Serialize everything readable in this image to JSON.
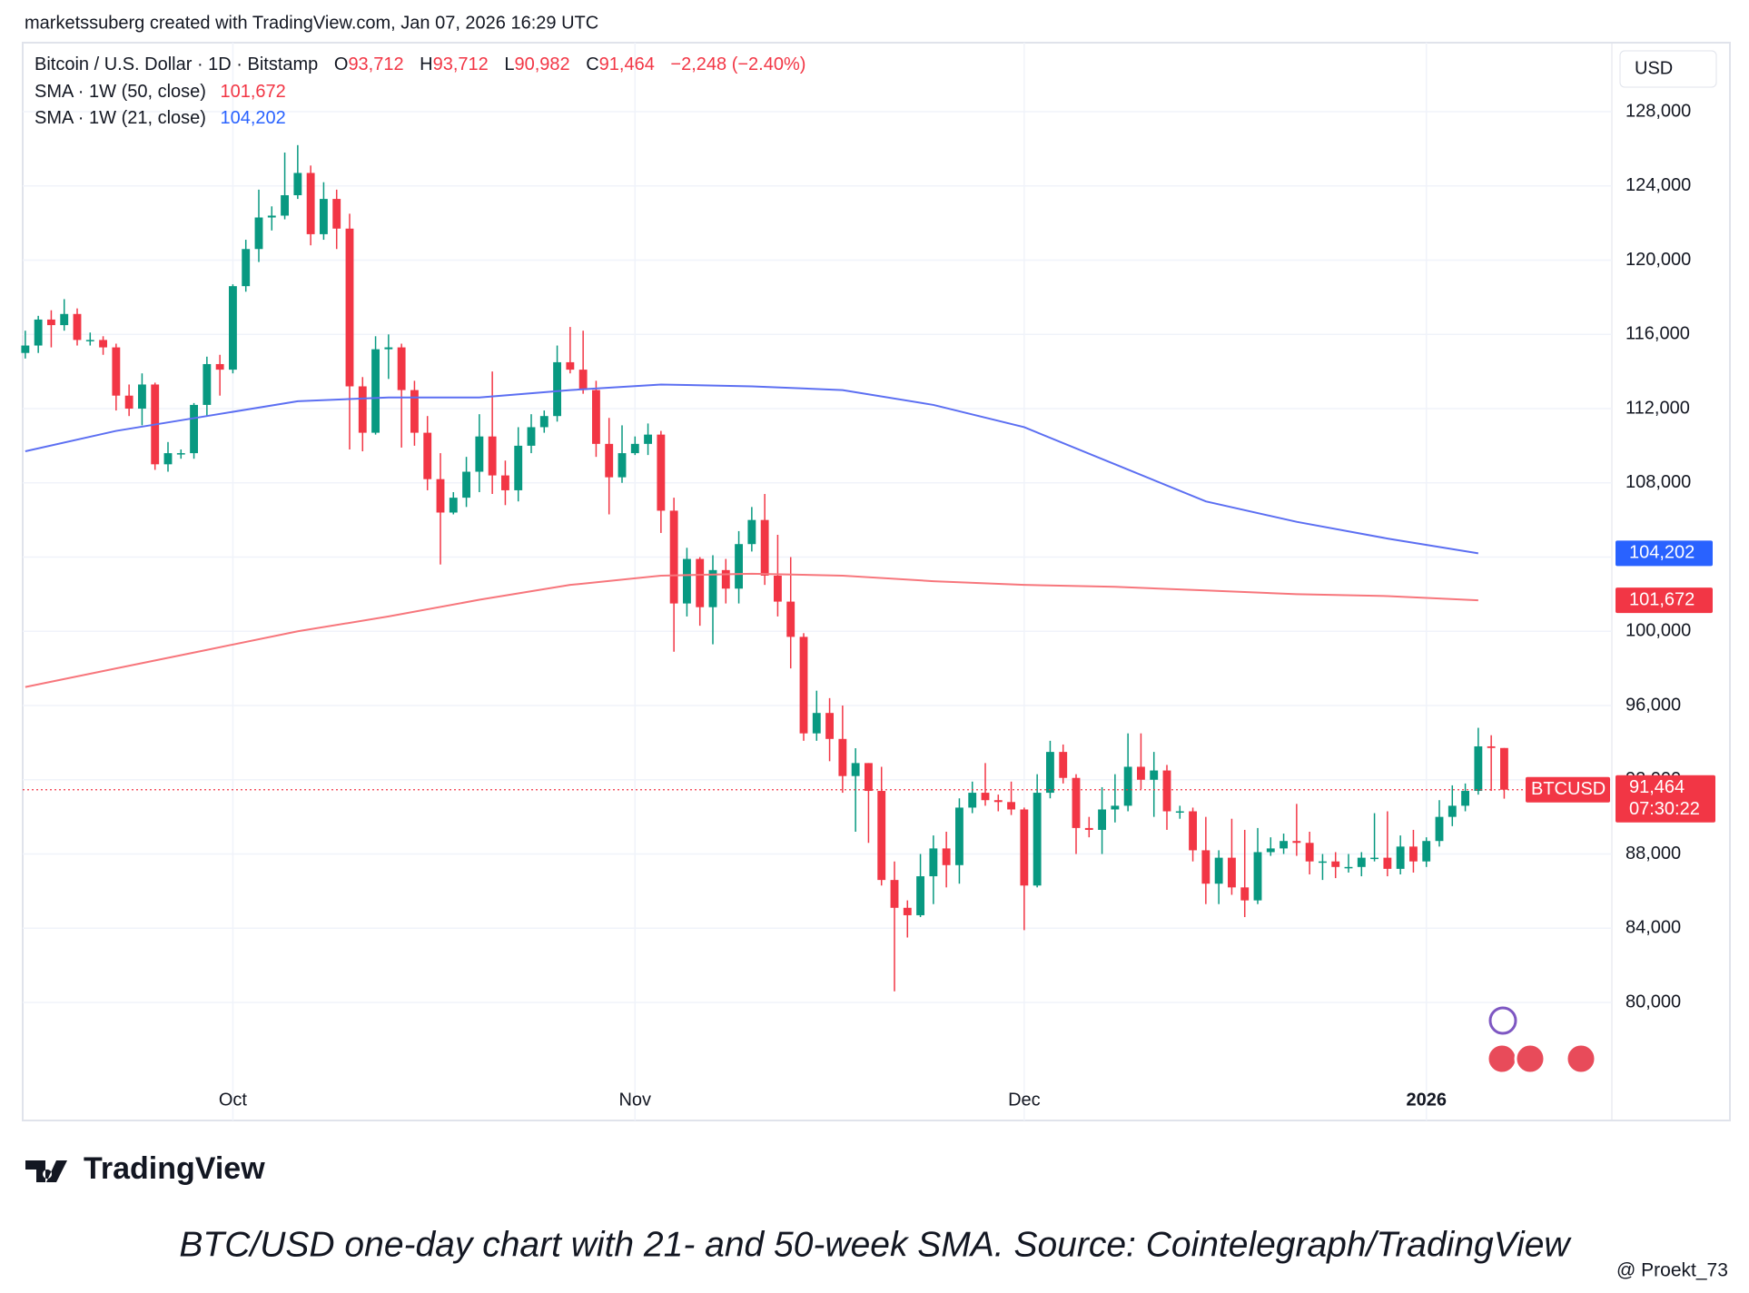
{
  "header": {
    "attribution": "marketssuberg created with TradingView.com, Jan 07, 2026 16:29 UTC"
  },
  "chart_data": {
    "type": "candlestick",
    "title": "Bitcoin / U.S. Dollar · 1D · Bitstamp",
    "ohlc_legend": {
      "keys": [
        "O",
        "H",
        "L",
        "C"
      ],
      "values": [
        93712,
        93712,
        90982,
        91464
      ],
      "value_labels": [
        "93,712",
        "93,712",
        "90,982",
        "91,464"
      ]
    },
    "change": {
      "value": -2248,
      "percent": -2.4,
      "label": "−2,248 (−2.40%)"
    },
    "currency": "USD",
    "open": [
      115000,
      115400,
      116800,
      116500,
      117100,
      115700,
      115700,
      115300,
      112700,
      112000,
      113300,
      109000,
      109600,
      109600,
      112200,
      114400,
      114100,
      118600,
      120600,
      122300,
      122400,
      123500,
      124700,
      121400,
      123300,
      121700,
      113200,
      110700,
      115200,
      115300,
      113000,
      110700,
      108200,
      106400,
      107200,
      108600,
      110500,
      108400,
      107600,
      110000,
      111000,
      111600,
      114500,
      114100,
      113000,
      110100,
      108300,
      109600,
      110100,
      110600,
      106500,
      101500,
      103900,
      101300,
      103300,
      102300,
      104700,
      106000,
      103000,
      101600,
      99700,
      94500,
      95600,
      94200,
      92200,
      92900,
      91400,
      86600,
      85100,
      84700,
      86800,
      88300,
      87400,
      90500,
      91300,
      90900,
      90800,
      90400,
      86300,
      91300,
      93500,
      92100,
      89400,
      89300,
      90400,
      90600,
      92700,
      92000,
      92500,
      90300,
      90300,
      88200,
      86400,
      87800,
      86200,
      85500,
      88100,
      88300,
      88700,
      88600,
      87600,
      87600,
      87300,
      87300,
      87800,
      87800,
      87200,
      88400,
      87600,
      88700,
      90000,
      90600,
      91400,
      93800,
      93712
    ],
    "high": [
      116200,
      117000,
      117300,
      117900,
      117400,
      116100,
      115900,
      115500,
      113300,
      113900,
      113400,
      110200,
      109800,
      112300,
      114800,
      114900,
      118700,
      121100,
      123800,
      122900,
      125800,
      126200,
      125100,
      124200,
      123800,
      122500,
      113700,
      115900,
      116000,
      115500,
      113500,
      111600,
      109600,
      107500,
      109400,
      111700,
      114000,
      109200,
      111000,
      111700,
      111900,
      115400,
      116400,
      116200,
      113500,
      111500,
      111100,
      110500,
      111200,
      110800,
      107200,
      104500,
      104000,
      104100,
      103900,
      105400,
      106700,
      107400,
      105200,
      104000,
      99900,
      96800,
      96400,
      96000,
      93700,
      92900,
      92700,
      87600,
      85500,
      88000,
      89000,
      89200,
      91000,
      91900,
      92900,
      91200,
      91900,
      90500,
      92300,
      94100,
      93900,
      92300,
      90000,
      91600,
      92300,
      94500,
      94500,
      93500,
      92800,
      90600,
      90500,
      90000,
      88200,
      89900,
      89300,
      89400,
      88900,
      89100,
      90700,
      89200,
      88000,
      88100,
      88000,
      88100,
      90200,
      90300,
      89000,
      89300,
      88900,
      90900,
      91700,
      91800,
      94800,
      94400,
      93712
    ],
    "low": [
      114700,
      115000,
      115300,
      116200,
      115400,
      115400,
      114900,
      111900,
      111600,
      111100,
      108700,
      108600,
      109300,
      109300,
      111600,
      112700,
      113900,
      118300,
      119900,
      121600,
      122200,
      123300,
      120800,
      121100,
      120600,
      109800,
      109700,
      110600,
      113600,
      109900,
      110000,
      107600,
      103600,
      106300,
      106700,
      107500,
      107400,
      106800,
      107000,
      109600,
      110700,
      111300,
      113900,
      112800,
      109400,
      106300,
      108000,
      109500,
      109500,
      105300,
      98900,
      100800,
      100300,
      99300,
      101500,
      101500,
      104300,
      102500,
      100800,
      98000,
      94100,
      94100,
      93000,
      91300,
      89200,
      88600,
      86300,
      80600,
      83500,
      84600,
      85300,
      86200,
      86400,
      90200,
      90600,
      90300,
      90100,
      83900,
      86200,
      91000,
      91800,
      88000,
      88900,
      88000,
      89700,
      90300,
      91500,
      90000,
      89300,
      89900,
      87600,
      85300,
      85300,
      85800,
      84600,
      85300,
      87900,
      88000,
      87900,
      86900,
      86600,
      86700,
      87000,
      86800,
      87600,
      86800,
      86900,
      87000,
      87300,
      88400,
      89500,
      90300,
      91200,
      91400,
      90982
    ],
    "close": [
      115400,
      116800,
      116500,
      117100,
      115700,
      115700,
      115300,
      112700,
      112000,
      113300,
      109000,
      109600,
      109600,
      112200,
      114400,
      114100,
      118600,
      120600,
      122300,
      122400,
      123500,
      124700,
      121400,
      123300,
      121700,
      113200,
      110700,
      115200,
      115300,
      113000,
      110700,
      108200,
      106400,
      107200,
      108600,
      110500,
      108400,
      107600,
      110000,
      111000,
      111600,
      114500,
      114100,
      113000,
      110100,
      108300,
      109600,
      110100,
      110600,
      106500,
      101500,
      103900,
      101300,
      103300,
      102300,
      104700,
      106000,
      103000,
      101600,
      99700,
      94500,
      95600,
      94200,
      92200,
      92900,
      91400,
      86600,
      85100,
      84700,
      86800,
      88300,
      87400,
      90500,
      91300,
      90900,
      90800,
      90400,
      86300,
      91300,
      93500,
      92100,
      89400,
      89300,
      90400,
      90600,
      92700,
      92000,
      92500,
      90300,
      90300,
      88200,
      86400,
      87800,
      86200,
      85500,
      88100,
      88300,
      88700,
      88600,
      87600,
      87600,
      87300,
      87300,
      87800,
      87800,
      87200,
      88400,
      87600,
      88700,
      90000,
      90600,
      91400,
      93800,
      93712,
      91464
    ],
    "up_color": "#089981",
    "down_color": "#f23645",
    "xlim": [
      -0.2,
      122.3
    ],
    "xticks": [
      {
        "value": 16,
        "label": "Oct"
      },
      {
        "value": 47,
        "label": "Nov"
      },
      {
        "value": 77,
        "label": "Dec"
      },
      {
        "value": 108,
        "label": "2026"
      }
    ],
    "ylim": [
      73640,
      131720
    ],
    "yticks": [
      {
        "value": 80000,
        "label": "80,000"
      },
      {
        "value": 84000,
        "label": "84,000"
      },
      {
        "value": 88000,
        "label": "88,000"
      },
      {
        "value": 92000,
        "label": "92,000"
      },
      {
        "value": 96000,
        "label": "96,000"
      },
      {
        "value": 100000,
        "label": "100,000"
      },
      {
        "value": 104000,
        "label": "104,000"
      },
      {
        "value": 108000,
        "label": "108,000"
      },
      {
        "value": 112000,
        "label": "112,000"
      },
      {
        "value": 116000,
        "label": "116,000"
      },
      {
        "value": 120000,
        "label": "120,000"
      },
      {
        "value": 124000,
        "label": "124,000"
      },
      {
        "value": 128000,
        "label": "128,000"
      }
    ],
    "grid": true,
    "series": [
      {
        "name": "SMA · 1W (50, close)",
        "color": "#f23645",
        "line_color": "#f7767c",
        "x": [
          0,
          7,
          14,
          21,
          28,
          35,
          42,
          49,
          56,
          63,
          70,
          77,
          84,
          91,
          98,
          105,
          112
        ],
        "values": [
          97000,
          98000,
          99000,
          100000,
          100800,
          101700,
          102500,
          103000,
          103100,
          103000,
          102700,
          102500,
          102400,
          102200,
          102000,
          101900,
          101672
        ],
        "last_label": "101,672"
      },
      {
        "name": "SMA · 1W (21, close)",
        "color": "#2962ff",
        "line_color": "#5c6ff2",
        "x": [
          0,
          7,
          14,
          21,
          28,
          35,
          42,
          49,
          56,
          63,
          70,
          77,
          84,
          91,
          98,
          105,
          112
        ],
        "values": [
          109700,
          110800,
          111600,
          112400,
          112600,
          112600,
          113000,
          113300,
          113200,
          113000,
          112200,
          111000,
          109000,
          107000,
          105900,
          105000,
          104202
        ],
        "last_label": "104,202"
      }
    ],
    "price_line": {
      "symbol": "BTCUSD",
      "value": 91464,
      "label": "91,464",
      "countdown": "07:30:22"
    }
  },
  "footer": {
    "logo": "TradingView",
    "caption": "BTC/USD one-day chart with 21- and 50-week SMA. Source: Cointelegraph/TradingView",
    "watermark": "@ Proekt_73"
  }
}
